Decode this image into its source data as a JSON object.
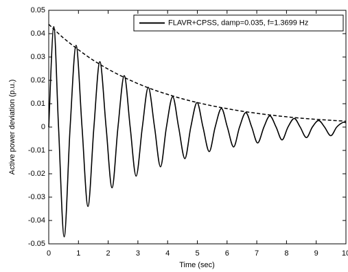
{
  "chart_data": {
    "type": "line",
    "xlabel": "Time (sec)",
    "ylabel": "Active power deviation (p.u.)",
    "xlim": [
      0,
      10
    ],
    "xticks": [
      0,
      1,
      2,
      3,
      4,
      5,
      6,
      7,
      8,
      9,
      10
    ],
    "ylim": [
      -0.05,
      0.05
    ],
    "yticks": [
      -0.05,
      -0.04,
      -0.03,
      -0.02,
      -0.01,
      0,
      0.01,
      0.02,
      0.03,
      0.04,
      0.05
    ],
    "grid": false,
    "legend": "upper right",
    "series": [
      {
        "name": "FLAVR+CPSS, damp=0.035, f=1.3699 Hz",
        "color": "#000000",
        "dash": "solid",
        "x": [
          0,
          0.17,
          0.33,
          0.52,
          0.72,
          0.92,
          1.12,
          1.32,
          1.52,
          1.72,
          1.93,
          2.13,
          2.33,
          2.54,
          2.74,
          2.94,
          3.15,
          3.35,
          3.56,
          3.76,
          3.96,
          4.17,
          4.37,
          4.58,
          4.78,
          4.99,
          5.19,
          5.4,
          5.6,
          5.81,
          6.01,
          6.22,
          6.42,
          6.63,
          6.83,
          7.03,
          7.24,
          7.44,
          7.65,
          7.85,
          8.05,
          8.26,
          8.46,
          8.67,
          8.87,
          9.08,
          9.28,
          9.49,
          9.69,
          9.9,
          10
        ],
        "values": [
          0,
          0.043,
          0,
          -0.047,
          0,
          0.035,
          0,
          -0.034,
          0,
          0.028,
          0,
          -0.026,
          0,
          0.022,
          0,
          -0.021,
          0,
          0.017,
          0,
          -0.017,
          0,
          0.013,
          0,
          -0.0135,
          0,
          0.0105,
          0,
          -0.0105,
          0,
          0.008,
          0,
          -0.0085,
          0,
          0.0062,
          0,
          -0.0068,
          0,
          0.0048,
          0,
          -0.0055,
          0,
          0.0037,
          0,
          -0.0045,
          0,
          0.0028,
          0,
          -0.0037,
          0,
          0.002,
          0.0018
        ]
      },
      {
        "color": "#000000",
        "dash": "dashed",
        "x": [
          0,
          0.5,
          1,
          1.5,
          2,
          2.5,
          3,
          3.5,
          4,
          4.5,
          5,
          5.5,
          6,
          6.5,
          7,
          7.5,
          8,
          8.5,
          9,
          9.5,
          10
        ],
        "values": [
          0.044,
          0.0381,
          0.0331,
          0.0286,
          0.0248,
          0.0215,
          0.0186,
          0.0161,
          0.014,
          0.0121,
          0.0105,
          0.0091,
          0.0079,
          0.0068,
          0.0059,
          0.0051,
          0.0044,
          0.0038,
          0.0033,
          0.0029,
          0.0025
        ]
      }
    ]
  }
}
